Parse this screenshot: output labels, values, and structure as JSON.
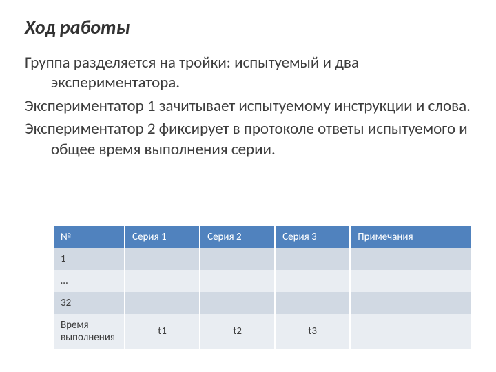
{
  "title": "Ход работы",
  "paragraphs": [
    "Группа разделяется на тройки: испытуемый и два экспериментатора.",
    "Экспериментатор 1  зачитывает испытуемому инструкции и слова.",
    "Экспериментатор 2 фиксирует в протоколе ответы испытуемого и общее время выполнения серии."
  ],
  "table": {
    "header_bg": "#5082be",
    "header_fg": "#ffffff",
    "row_alt_a": "#d1d9e3",
    "row_alt_b": "#e9edf2",
    "columns": [
      "№",
      "Серия 1",
      "Серия 2",
      "Серия 3",
      "Примечания"
    ],
    "rows": [
      {
        "cells": [
          "1",
          "",
          "",
          "",
          ""
        ],
        "stripe": "a"
      },
      {
        "cells": [
          "…",
          "",
          "",
          "",
          ""
        ],
        "stripe": "b"
      },
      {
        "cells": [
          "32",
          "",
          "",
          "",
          ""
        ],
        "stripe": "a"
      },
      {
        "cells": [
          "Время выполнения",
          "t1",
          "t2",
          "t3",
          ""
        ],
        "stripe": "b",
        "center_values": true
      }
    ]
  }
}
